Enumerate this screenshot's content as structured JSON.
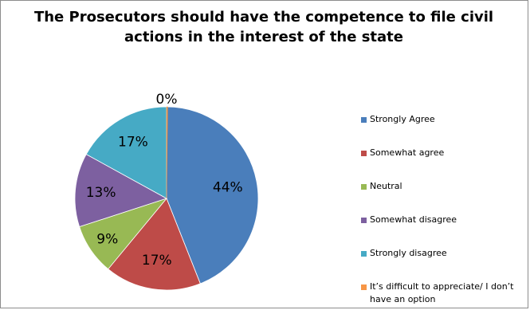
{
  "chart_data": {
    "type": "pie",
    "title": "The Prosecutors should have the competence to file civil actions in the interest of the state",
    "categories": [
      "Strongly Agree",
      "Somewhat agree",
      "Neutral",
      "Somewhat disagree",
      "Strongly disagree",
      "It’s difficult to appreciate/ I don’t have an option"
    ],
    "values": [
      44,
      17,
      9,
      13,
      17,
      0
    ],
    "value_labels": [
      "44%",
      "17%",
      "9%",
      "13%",
      "17%",
      "0%"
    ],
    "colors": [
      "#4a7ebb",
      "#be4b48",
      "#98b954",
      "#7d60a0",
      "#46aac5",
      "#f79646"
    ],
    "legend_position": "right"
  }
}
